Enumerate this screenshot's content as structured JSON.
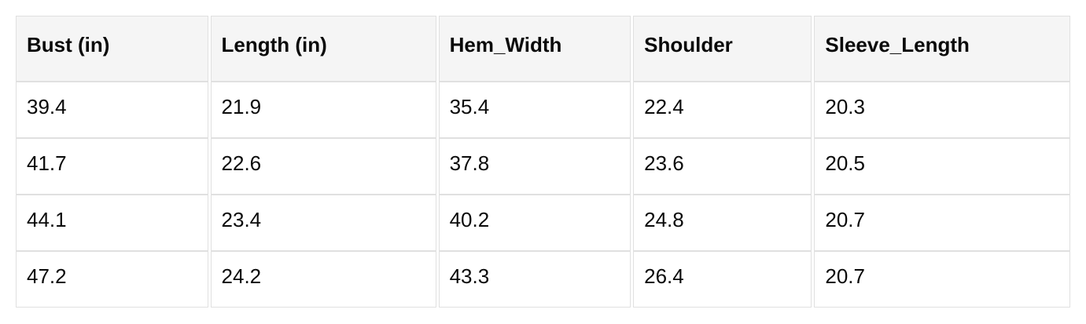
{
  "table": {
    "headers": [
      "Bust (in)",
      "Length (in)",
      "Hem_Width",
      "Shoulder",
      "Sleeve_Length"
    ],
    "rows": [
      [
        "39.4",
        "21.9",
        "35.4",
        "22.4",
        "20.3"
      ],
      [
        "41.7",
        "22.6",
        "37.8",
        "23.6",
        "20.5"
      ],
      [
        "44.1",
        "23.4",
        "40.2",
        "24.8",
        "20.7"
      ],
      [
        "47.2",
        "24.2",
        "43.3",
        "26.4",
        "20.7"
      ]
    ]
  },
  "chart_data": {
    "type": "table",
    "columns": [
      "Bust (in)",
      "Length (in)",
      "Hem_Width",
      "Shoulder",
      "Sleeve_Length"
    ],
    "rows": [
      [
        39.4,
        21.9,
        35.4,
        22.4,
        20.3
      ],
      [
        41.7,
        22.6,
        37.8,
        23.6,
        20.5
      ],
      [
        44.1,
        23.4,
        40.2,
        24.8,
        20.7
      ],
      [
        47.2,
        24.2,
        43.3,
        26.4,
        20.7
      ]
    ]
  },
  "colors": {
    "header_background": "#f5f5f5",
    "cell_background": "#ffffff",
    "border": "#e0e0e0",
    "text": "#0a0a0a",
    "page_background": "#ffffff"
  }
}
